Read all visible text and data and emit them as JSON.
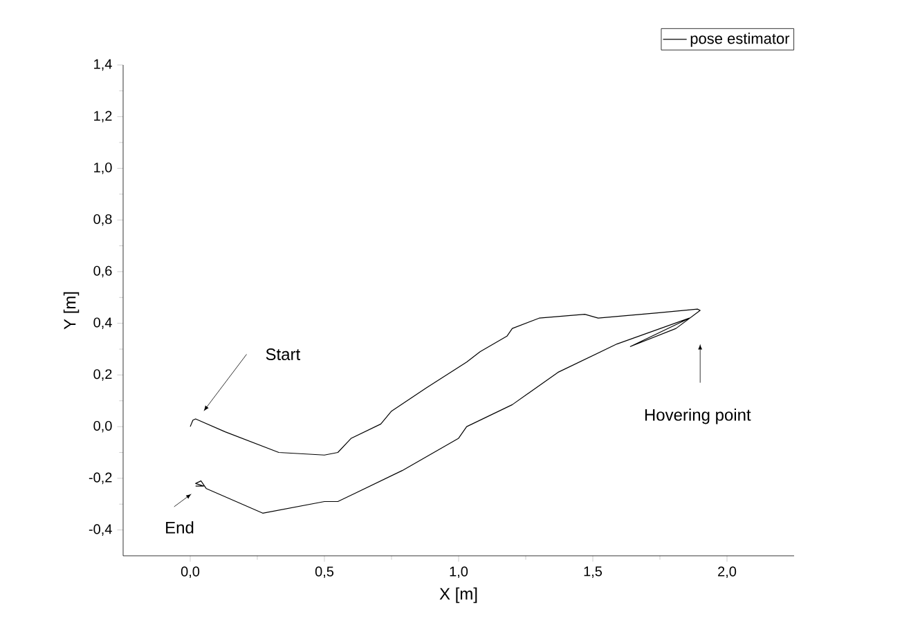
{
  "chart_data": {
    "type": "line",
    "xlabel": "X [m]",
    "ylabel": "Y [m]",
    "xlim": [
      -0.25,
      2.25
    ],
    "ylim": [
      -0.5,
      1.4
    ],
    "xticks": [
      {
        "value": 0,
        "label": "0,0"
      },
      {
        "value": 0.5,
        "label": "0,5"
      },
      {
        "value": 1,
        "label": "1,0"
      },
      {
        "value": 1.5,
        "label": "1,5"
      },
      {
        "value": 2,
        "label": "2,0"
      }
    ],
    "yticks": [
      {
        "value": -0.4,
        "label": "-0,4"
      },
      {
        "value": -0.2,
        "label": "-0,2"
      },
      {
        "value": 0,
        "label": "0,0"
      },
      {
        "value": 0.2,
        "label": "0,2"
      },
      {
        "value": 0.4,
        "label": "0,4"
      },
      {
        "value": 0.6,
        "label": "0,6"
      },
      {
        "value": 0.8,
        "label": "0,8"
      },
      {
        "value": 1,
        "label": "1,0"
      },
      {
        "value": 1.2,
        "label": "1,2"
      },
      {
        "value": 1.4,
        "label": "1,4"
      }
    ],
    "series": [
      {
        "name": "pose estimator",
        "color": "#000000",
        "x": [
          0,
          0.01,
          0.02,
          0.13,
          0.33,
          0.5,
          0.55,
          0.6,
          0.71,
          0.75,
          0.88,
          1.03,
          1.08,
          1.18,
          1.2,
          1.3,
          1.47,
          1.52,
          1.74,
          1.89,
          1.9,
          1.81,
          1.64,
          1.86,
          1.59,
          1.37,
          1.2,
          1.03,
          1.0,
          0.79,
          0.55,
          0.5,
          0.27,
          0.06,
          0.04,
          0.02,
          0.05,
          0.02
        ],
        "values": [
          0,
          0.025,
          0.03,
          -0.02,
          -0.1,
          -0.11,
          -0.1,
          -0.045,
          0.01,
          0.06,
          0.15,
          0.25,
          0.29,
          0.35,
          0.38,
          0.42,
          0.435,
          0.42,
          0.44,
          0.455,
          0.45,
          0.38,
          0.31,
          0.42,
          0.32,
          0.21,
          0.085,
          0.0,
          -0.045,
          -0.17,
          -0.29,
          -0.29,
          -0.335,
          -0.24,
          -0.21,
          -0.22,
          -0.23,
          -0.23
        ]
      }
    ],
    "legend": "top right",
    "marker": "none",
    "line_style": "solid",
    "grid": false,
    "annotations": [
      "Start",
      "End",
      "Hovering point"
    ]
  }
}
